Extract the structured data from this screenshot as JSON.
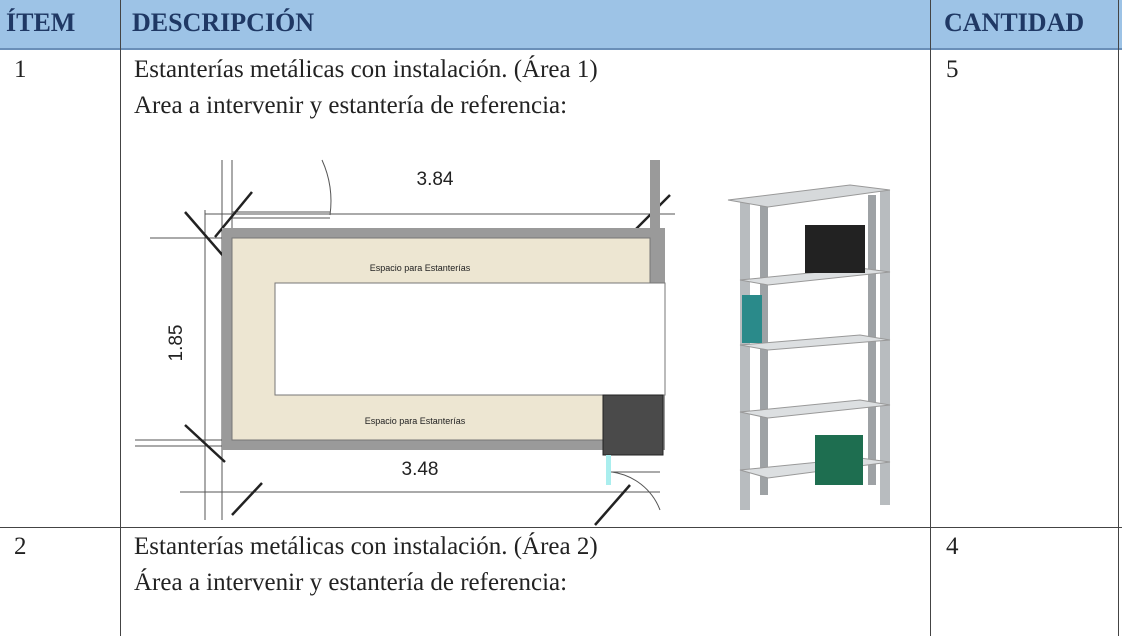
{
  "table": {
    "header": [
      "ÍTEM",
      "DESCRIPCIÓN",
      "CANTIDAD"
    ],
    "rows": [
      {
        "item": "1",
        "description": [
          "Estanterías metálicas con instalación. (Área 1)",
          "Area a intervenir y estantería de referencia:"
        ],
        "quantity": "5",
        "plan": {
          "top_width": "3.84",
          "side_height": "1.85",
          "bottom_width": "3.48",
          "zones": [
            "Espacio para Estanterías",
            "Espacio para Estanterías"
          ]
        }
      },
      {
        "item": "2",
        "description": [
          "Estanterías metálicas con instalación. (Área 2)",
          "Área a intervenir y estantería de referencia:"
        ],
        "quantity": "4"
      }
    ]
  }
}
